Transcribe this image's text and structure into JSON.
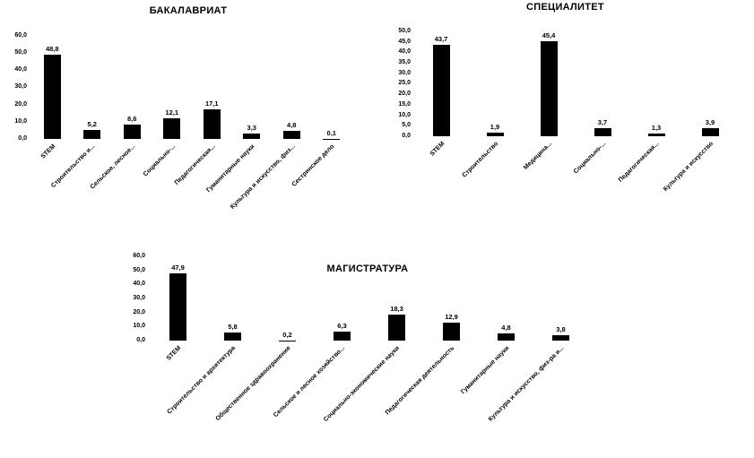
{
  "page": {
    "background": "#ffffff",
    "bar_color": "#000000",
    "text_color": "#000000"
  },
  "chart_data": [
    {
      "type": "bar",
      "title": "БАКАЛАВРИАТ",
      "xlabel": "",
      "ylabel": "",
      "ylim": [
        0,
        60
      ],
      "grid": false,
      "legend": "none",
      "y_ticks": [
        "60,0",
        "50,0",
        "40,0",
        "30,0",
        "20,0",
        "10,0",
        "0,0"
      ],
      "categories": [
        "STEM",
        "Строительство и...",
        "Сельское, лесное...",
        "Социально-...",
        "Педагогическая...",
        "Гуманитарные науки",
        "Культура и искусство, физ...",
        "Сестринское дело"
      ],
      "values": [
        48.8,
        5.2,
        8.6,
        12.1,
        17.1,
        3.3,
        4.8,
        0.1
      ],
      "value_labels": [
        "48,8",
        "5,2",
        "8,6",
        "12,1",
        "17,1",
        "3,3",
        "4,8",
        "0,1"
      ]
    },
    {
      "type": "bar",
      "title": "СПЕЦИАЛИТЕТ",
      "xlabel": "",
      "ylabel": "",
      "ylim": [
        0,
        50
      ],
      "grid": false,
      "legend": "none",
      "y_ticks": [
        "50,0",
        "45,0",
        "40,0",
        "35,0",
        "30,0",
        "25,0",
        "20,0",
        "15,0",
        "10,0",
        "5,0",
        "0,0"
      ],
      "categories": [
        "STEM",
        "Строительство",
        "Медицина...",
        "Социально-...",
        "Педагогическая...",
        "Культура и искусство"
      ],
      "values": [
        43.7,
        1.9,
        45.4,
        3.7,
        1.3,
        3.9
      ],
      "value_labels": [
        "43,7",
        "1,9",
        "45,4",
        "3,7",
        "1,3",
        "3,9"
      ]
    },
    {
      "type": "bar",
      "title": "МАГИСТРАТУРА",
      "xlabel": "",
      "ylabel": "",
      "ylim": [
        0,
        60
      ],
      "grid": false,
      "legend": "none",
      "y_ticks": [
        "60,0",
        "50,0",
        "40,0",
        "30,0",
        "20,0",
        "10,0",
        "0,0"
      ],
      "categories": [
        "STEM",
        "Строительство и архитектура",
        "Общественное здравоохранение",
        "Сельское и лесное хозяйство...",
        "Социально-экономические науки",
        "Педагогическая деятельность",
        "Гуманитарные науки",
        "Культура и искусство, физ-ра и..."
      ],
      "values": [
        47.9,
        5.8,
        0.2,
        6.3,
        18.3,
        12.9,
        4.8,
        3.8
      ],
      "value_labels": [
        "47,9",
        "5,8",
        "0,2",
        "6,3",
        "18,3",
        "12,9",
        "4,8",
        "3,8"
      ]
    }
  ]
}
